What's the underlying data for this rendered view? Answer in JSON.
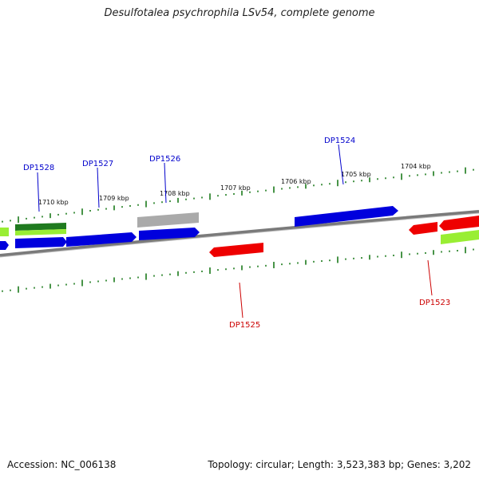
{
  "header": {
    "title": "Desulfotalea psychrophila LSv54, complete genome"
  },
  "footer": {
    "accession": "Accession: NC_006138",
    "topology": "Topology: circular; Length: 3,523,383 bp; Genes: 3,202"
  },
  "colors": {
    "backbone": "#7a7a7a",
    "tick_plus": "#1a7a1a",
    "tick_minus": "#1a7a1a",
    "gene_blue": "#0000dd",
    "gene_red": "#ee0000",
    "gene_gray": "#aaaaaa",
    "gene_lime": "#99ee33",
    "gene_darkgreen": "#1f7a1f",
    "label_blue": "#0000cc",
    "label_red": "#cc0000"
  },
  "scale_labels": [
    "1710 kbp",
    "1709 kbp",
    "1708 kbp",
    "1707 kbp",
    "1706 kbp",
    "1705 kbp",
    "1704 kbp"
  ],
  "gene_labels": [
    {
      "text": "DP1528",
      "strand": "plus"
    },
    {
      "text": "DP1527",
      "strand": "plus"
    },
    {
      "text": "DP1526",
      "strand": "plus"
    },
    {
      "text": "DP1524",
      "strand": "plus"
    },
    {
      "text": "DP1525",
      "strand": "minus"
    },
    {
      "text": "DP1523",
      "strand": "minus"
    }
  ]
}
